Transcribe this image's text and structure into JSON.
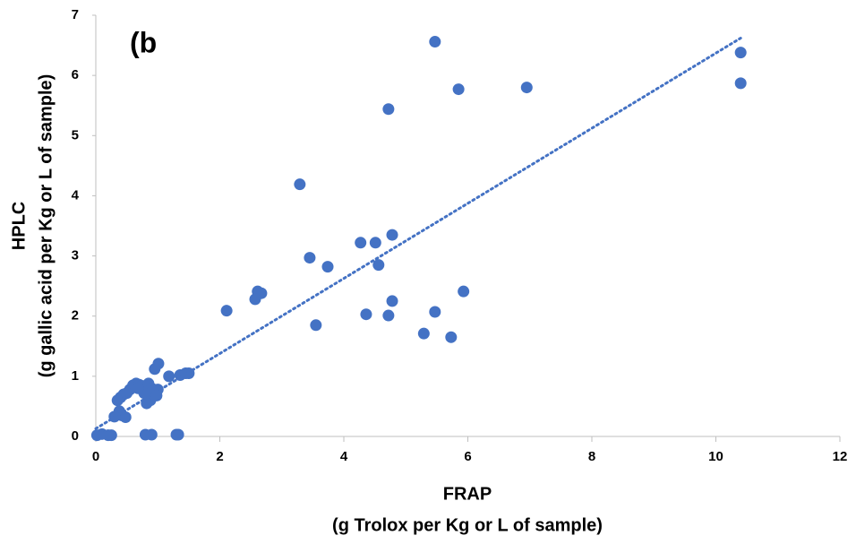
{
  "chart_data": {
    "type": "scatter",
    "color": "#4472c4",
    "annotation": "(b",
    "xlabel": [
      "FRAP",
      "(g Trolox per Kg or L of sample)"
    ],
    "ylabel": [
      "HPLC",
      "(g gallic acid per Kg or L of sample)"
    ],
    "xlim": [
      0,
      12
    ],
    "xticks": [
      0,
      2,
      4,
      6,
      8,
      10,
      12
    ],
    "ylim": [
      0,
      7
    ],
    "yticks": [
      0,
      1,
      2,
      3,
      4,
      5,
      6,
      7
    ],
    "x": [
      5.47,
      5.85,
      6.95,
      10.4,
      10.4,
      4.72,
      3.29,
      4.78,
      4.27,
      4.51,
      3.45,
      3.74,
      4.56,
      2.67,
      2.61,
      2.57,
      2.11,
      4.78,
      5.93,
      4.36,
      4.72,
      5.47,
      3.55,
      5.29,
      5.73,
      1.01,
      0.95,
      1.18,
      1.36,
      1.45,
      1.5,
      0.6,
      0.65,
      0.7,
      0.75,
      0.8,
      0.85,
      0.9,
      0.95,
      1.0,
      0.55,
      0.4,
      0.45,
      0.35,
      0.5,
      0.88,
      0.82,
      0.92,
      0.98,
      0.78,
      0.68,
      0.38,
      0.42,
      0.48,
      0.3,
      0.02,
      0.1,
      0.2,
      0.25,
      0.8,
      0.9,
      1.3,
      1.33
    ],
    "y": [
      6.56,
      5.77,
      5.8,
      6.38,
      5.87,
      5.44,
      4.19,
      3.35,
      3.22,
      3.22,
      2.97,
      2.82,
      2.85,
      2.38,
      2.41,
      2.28,
      2.09,
      2.25,
      2.41,
      2.03,
      2.01,
      2.07,
      1.85,
      1.71,
      1.65,
      1.21,
      1.12,
      1.0,
      1.02,
      1.05,
      1.05,
      0.85,
      0.88,
      0.86,
      0.84,
      0.82,
      0.88,
      0.8,
      0.7,
      0.78,
      0.78,
      0.65,
      0.7,
      0.6,
      0.72,
      0.6,
      0.55,
      0.75,
      0.68,
      0.72,
      0.8,
      0.42,
      0.35,
      0.32,
      0.33,
      0.02,
      0.04,
      0.02,
      0.02,
      0.03,
      0.03,
      0.03,
      0.03
    ],
    "trendline": {
      "x": [
        0,
        10.4
      ],
      "y": [
        0.13,
        6.62
      ]
    }
  }
}
